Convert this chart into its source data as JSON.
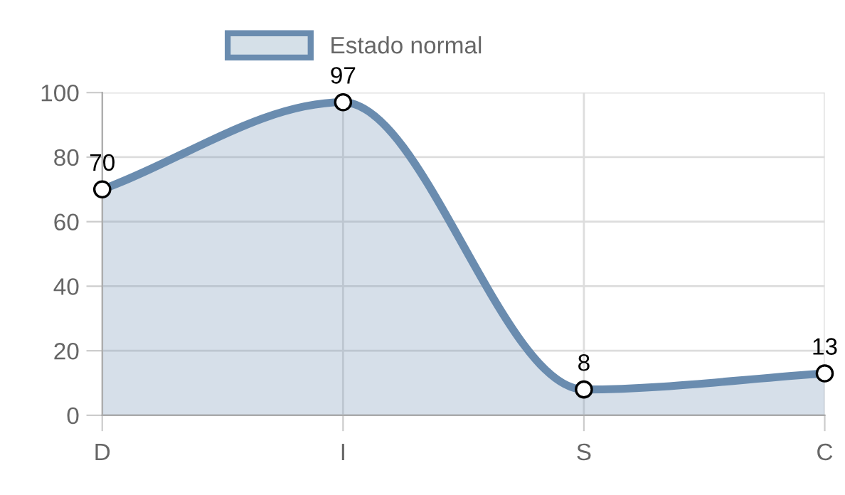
{
  "chart_data": {
    "type": "area",
    "categories": [
      "D",
      "I",
      "S",
      "C"
    ],
    "series": [
      {
        "name": "Estado normal",
        "color": "#6a8caf",
        "values": [
          70,
          97,
          8,
          13
        ]
      }
    ],
    "ylim": [
      0,
      100
    ],
    "yticks": [
      0,
      20,
      40,
      60,
      80,
      100
    ],
    "grid": true,
    "legend": "top",
    "marker": "circle",
    "data_labels": true
  }
}
